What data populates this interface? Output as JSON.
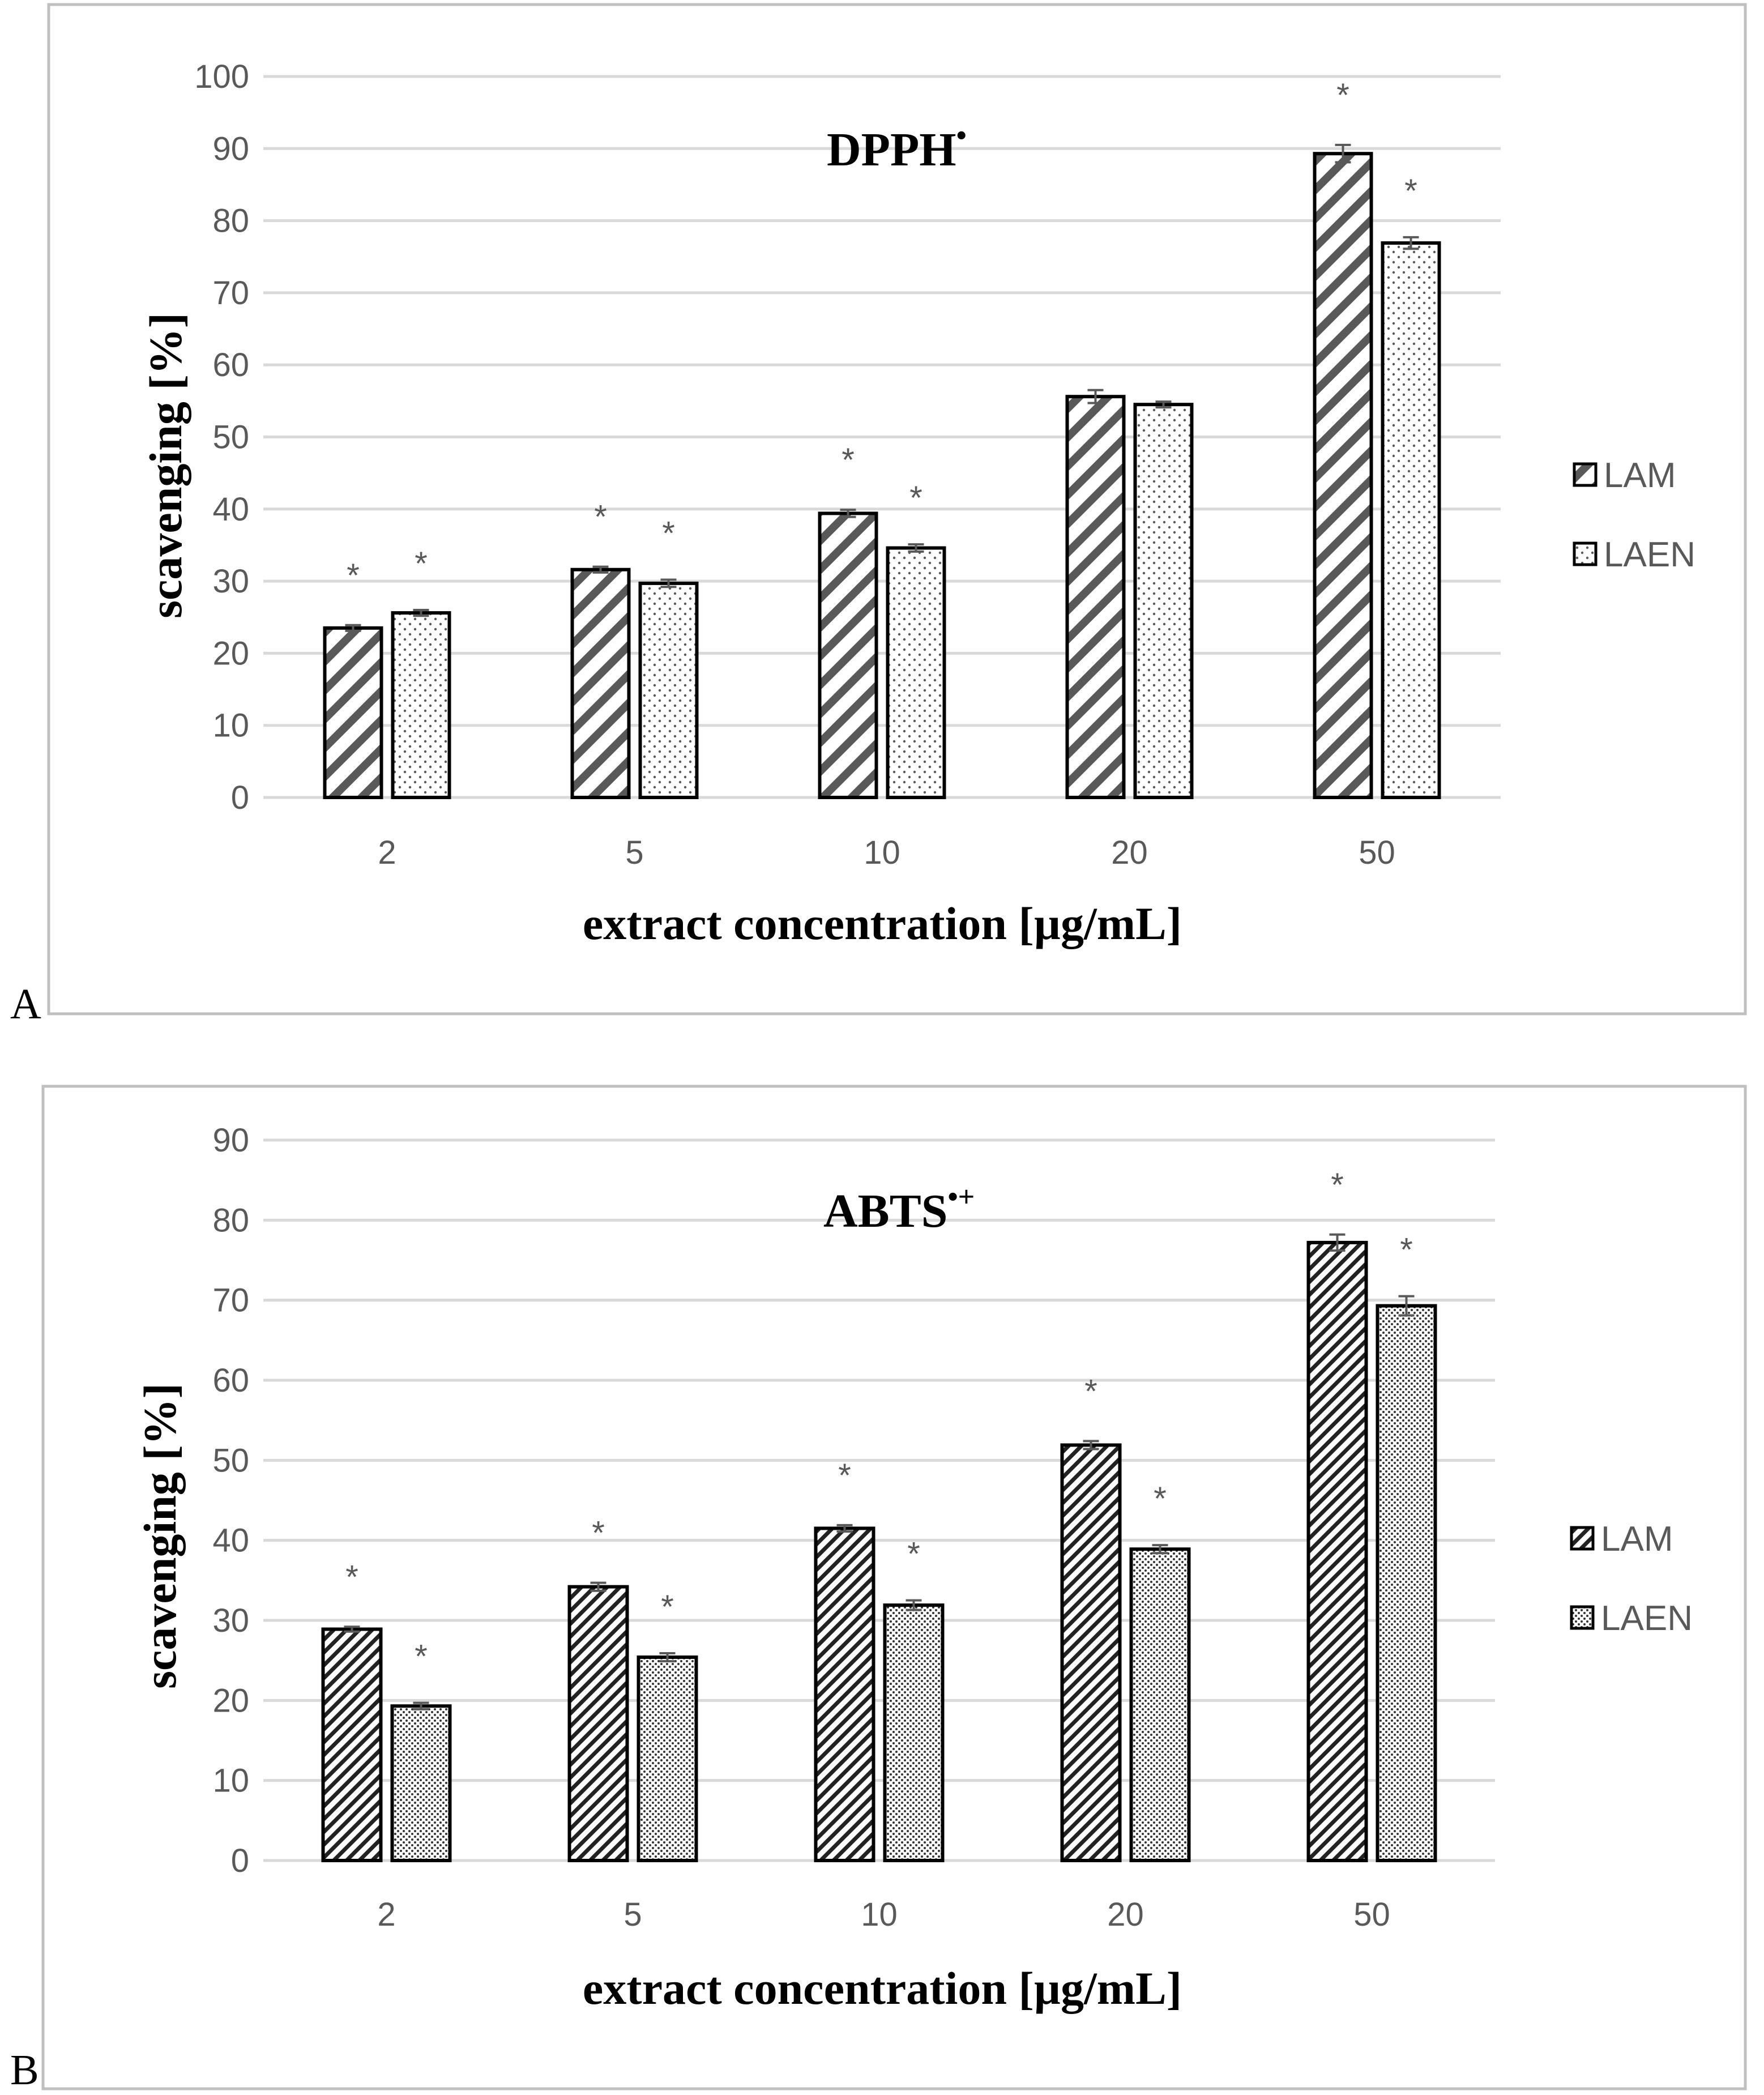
{
  "colors": {
    "grid": "#d9d9d9",
    "bar_stroke": "#000000",
    "hatch": "#595959",
    "frame": "#bfbfbf",
    "text": "#595959"
  },
  "chart_data": [
    {
      "type": "bar",
      "panel_label": "A",
      "title": "DPPH",
      "title_sup": "•",
      "xlabel": "extract concentration [µg/mL]",
      "ylabel": "scavenging [%]",
      "categories": [
        "2",
        "5",
        "10",
        "20",
        "50"
      ],
      "ylim": [
        0,
        100
      ],
      "ytick_step": 10,
      "grid": true,
      "legend": "right",
      "series": [
        {
          "name": "LAM",
          "pattern": "diag-wide",
          "values": [
            23.5,
            31.6,
            39.4,
            55.6,
            89.3
          ],
          "errors": [
            0.4,
            0.4,
            0.5,
            0.9,
            1.2
          ],
          "significant": [
            true,
            true,
            true,
            false,
            true
          ]
        },
        {
          "name": "LAEN",
          "pattern": "dots",
          "values": [
            25.6,
            29.7,
            34.6,
            54.5,
            76.9
          ],
          "errors": [
            0.4,
            0.5,
            0.5,
            0.4,
            0.8
          ],
          "significant": [
            true,
            true,
            true,
            false,
            true
          ]
        }
      ],
      "annotation_symbol": "*"
    },
    {
      "type": "bar",
      "panel_label": "B",
      "title": "ABTS",
      "title_sup": "•+",
      "xlabel": "extract concentration [µg/mL]",
      "ylabel": "scavenging [%]",
      "categories": [
        "2",
        "5",
        "10",
        "20",
        "50"
      ],
      "ylim": [
        0,
        90
      ],
      "ytick_step": 10,
      "grid": true,
      "legend": "right",
      "series": [
        {
          "name": "LAM",
          "pattern": "diag-dense",
          "values": [
            28.9,
            34.2,
            41.5,
            51.9,
            77.2
          ],
          "errors": [
            0.3,
            0.5,
            0.4,
            0.5,
            1.0
          ],
          "significant": [
            true,
            true,
            true,
            true,
            true
          ]
        },
        {
          "name": "LAEN",
          "pattern": "dots-dense",
          "values": [
            19.3,
            25.4,
            31.9,
            38.9,
            69.3
          ],
          "errors": [
            0.4,
            0.5,
            0.6,
            0.5,
            1.2
          ],
          "significant": [
            true,
            true,
            true,
            true,
            true
          ]
        }
      ],
      "annotation_symbol": "*"
    }
  ]
}
